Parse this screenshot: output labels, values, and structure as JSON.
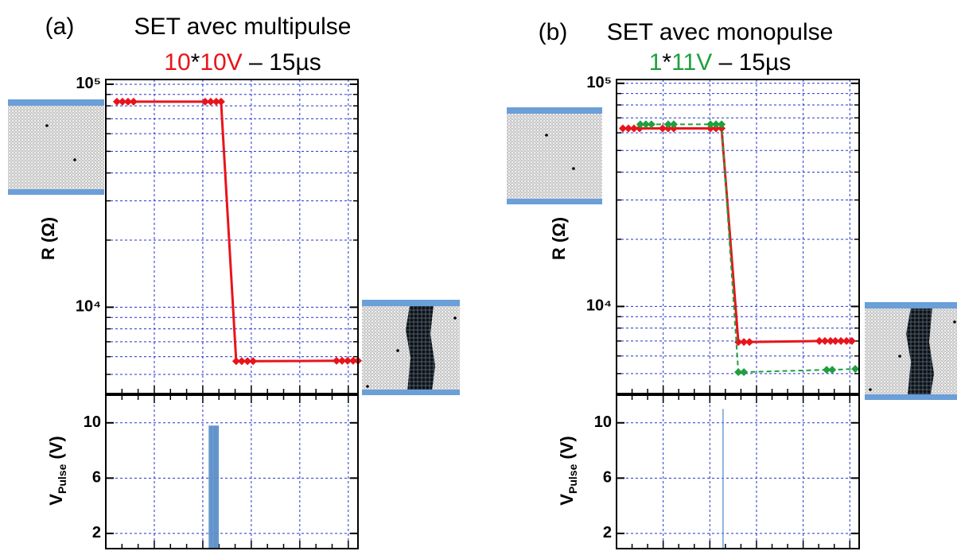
{
  "chart_data": [
    {
      "type": "line",
      "panel_label": "(a)",
      "title": "SET avec multipulse",
      "subtitle_parts": [
        {
          "text": "10",
          "color": "#e8141b"
        },
        {
          "text": "*",
          "color": "#000000"
        },
        {
          "text": "10V",
          "color": "#e8141b"
        },
        {
          "text": " – 15µs",
          "color": "#000000"
        }
      ],
      "ylabel": "R (Ω)",
      "log_y": true,
      "grid": true,
      "xlim": [
        0,
        100
      ],
      "ylim": [
        4100,
        105000
      ],
      "yticks": [
        {
          "value": 10000,
          "label": "10⁴"
        },
        {
          "value": 100000,
          "label": "10⁵"
        }
      ],
      "series": [
        {
          "color": "#e8141b",
          "dashed": false,
          "x": [
            4.4,
            6.6,
            8.8,
            11,
            39.4,
            41.6,
            43.8,
            45.7,
            51.7,
            53.9,
            56.2,
            58.4,
            91.5,
            93.7,
            95.9,
            98.1,
            100
          ],
          "values": [
            83500,
            83500,
            83500,
            83500,
            83500,
            83500,
            83500,
            83500,
            5730,
            5730,
            5730,
            5730,
            5750,
            5750,
            5750,
            5750,
            5750
          ]
        }
      ]
    },
    {
      "type": "pulse",
      "ylabel_parts": [
        "V",
        "Pulse",
        "(V)"
      ],
      "grid": true,
      "xlim": [
        0,
        100
      ],
      "ylim": [
        0.9,
        12
      ],
      "yticks": [
        2,
        6,
        10
      ],
      "color": "#5b8fc9",
      "x": [
        41,
        41.4,
        41.8,
        42.2,
        42.6,
        43,
        43.4,
        43.8,
        44.2,
        44.6
      ],
      "values": [
        9.8,
        9.8,
        9.8,
        9.8,
        9.8,
        9.8,
        9.8,
        9.8,
        9.8,
        9.8
      ]
    },
    {
      "type": "line",
      "panel_label": "(b)",
      "title": "SET avec monopulse",
      "subtitle_parts": [
        {
          "text": "1",
          "color": "#1fa03c"
        },
        {
          "text": "*",
          "color": "#000000"
        },
        {
          "text": "11V",
          "color": "#1fa03c"
        },
        {
          "text": " – 15µs",
          "color": "#000000"
        }
      ],
      "ylabel": "R (Ω)",
      "log_y": true,
      "grid": true,
      "xlim": [
        0,
        100
      ],
      "ylim": [
        4070,
        104000
      ],
      "yticks": [
        {
          "value": 10000,
          "label": "10⁴"
        },
        {
          "value": 100000,
          "label": "10⁵"
        }
      ],
      "series": [
        {
          "color": "#e8141b",
          "dashed": false,
          "x": [
            2.6,
            4.9,
            7.2,
            9.5,
            19,
            21.3,
            23.6,
            38.7,
            41,
            43.3,
            50.2,
            52.5,
            54.8,
            83.6,
            85.9,
            88.2,
            90.2,
            92.5,
            94.8,
            97
          ],
          "values": [
            62800,
            62800,
            62800,
            62800,
            62800,
            62800,
            62800,
            62800,
            62800,
            62800,
            6930,
            6930,
            6930,
            7000,
            7000,
            7000,
            7000,
            7000,
            7000,
            7000
          ]
        },
        {
          "color": "#1fa03c",
          "dashed": true,
          "x": [
            9.8,
            12.1,
            14.4,
            21.3,
            23.6,
            38.7,
            41,
            43.3,
            50.2,
            52.5,
            86.6,
            88.9,
            98.4
          ],
          "values": [
            65500,
            65500,
            65500,
            65500,
            65500,
            65500,
            65500,
            65500,
            5080,
            5080,
            5200,
            5200,
            5250
          ]
        }
      ]
    },
    {
      "type": "pulse",
      "ylabel_parts": [
        "V",
        "Pulse",
        "(V)"
      ],
      "grid": true,
      "xlim": [
        0,
        100
      ],
      "ylim": [
        0.9,
        12
      ],
      "yticks": [
        2,
        6,
        10
      ],
      "color": "#5b8fc9",
      "x": [
        43.9
      ],
      "values": [
        11
      ]
    }
  ]
}
